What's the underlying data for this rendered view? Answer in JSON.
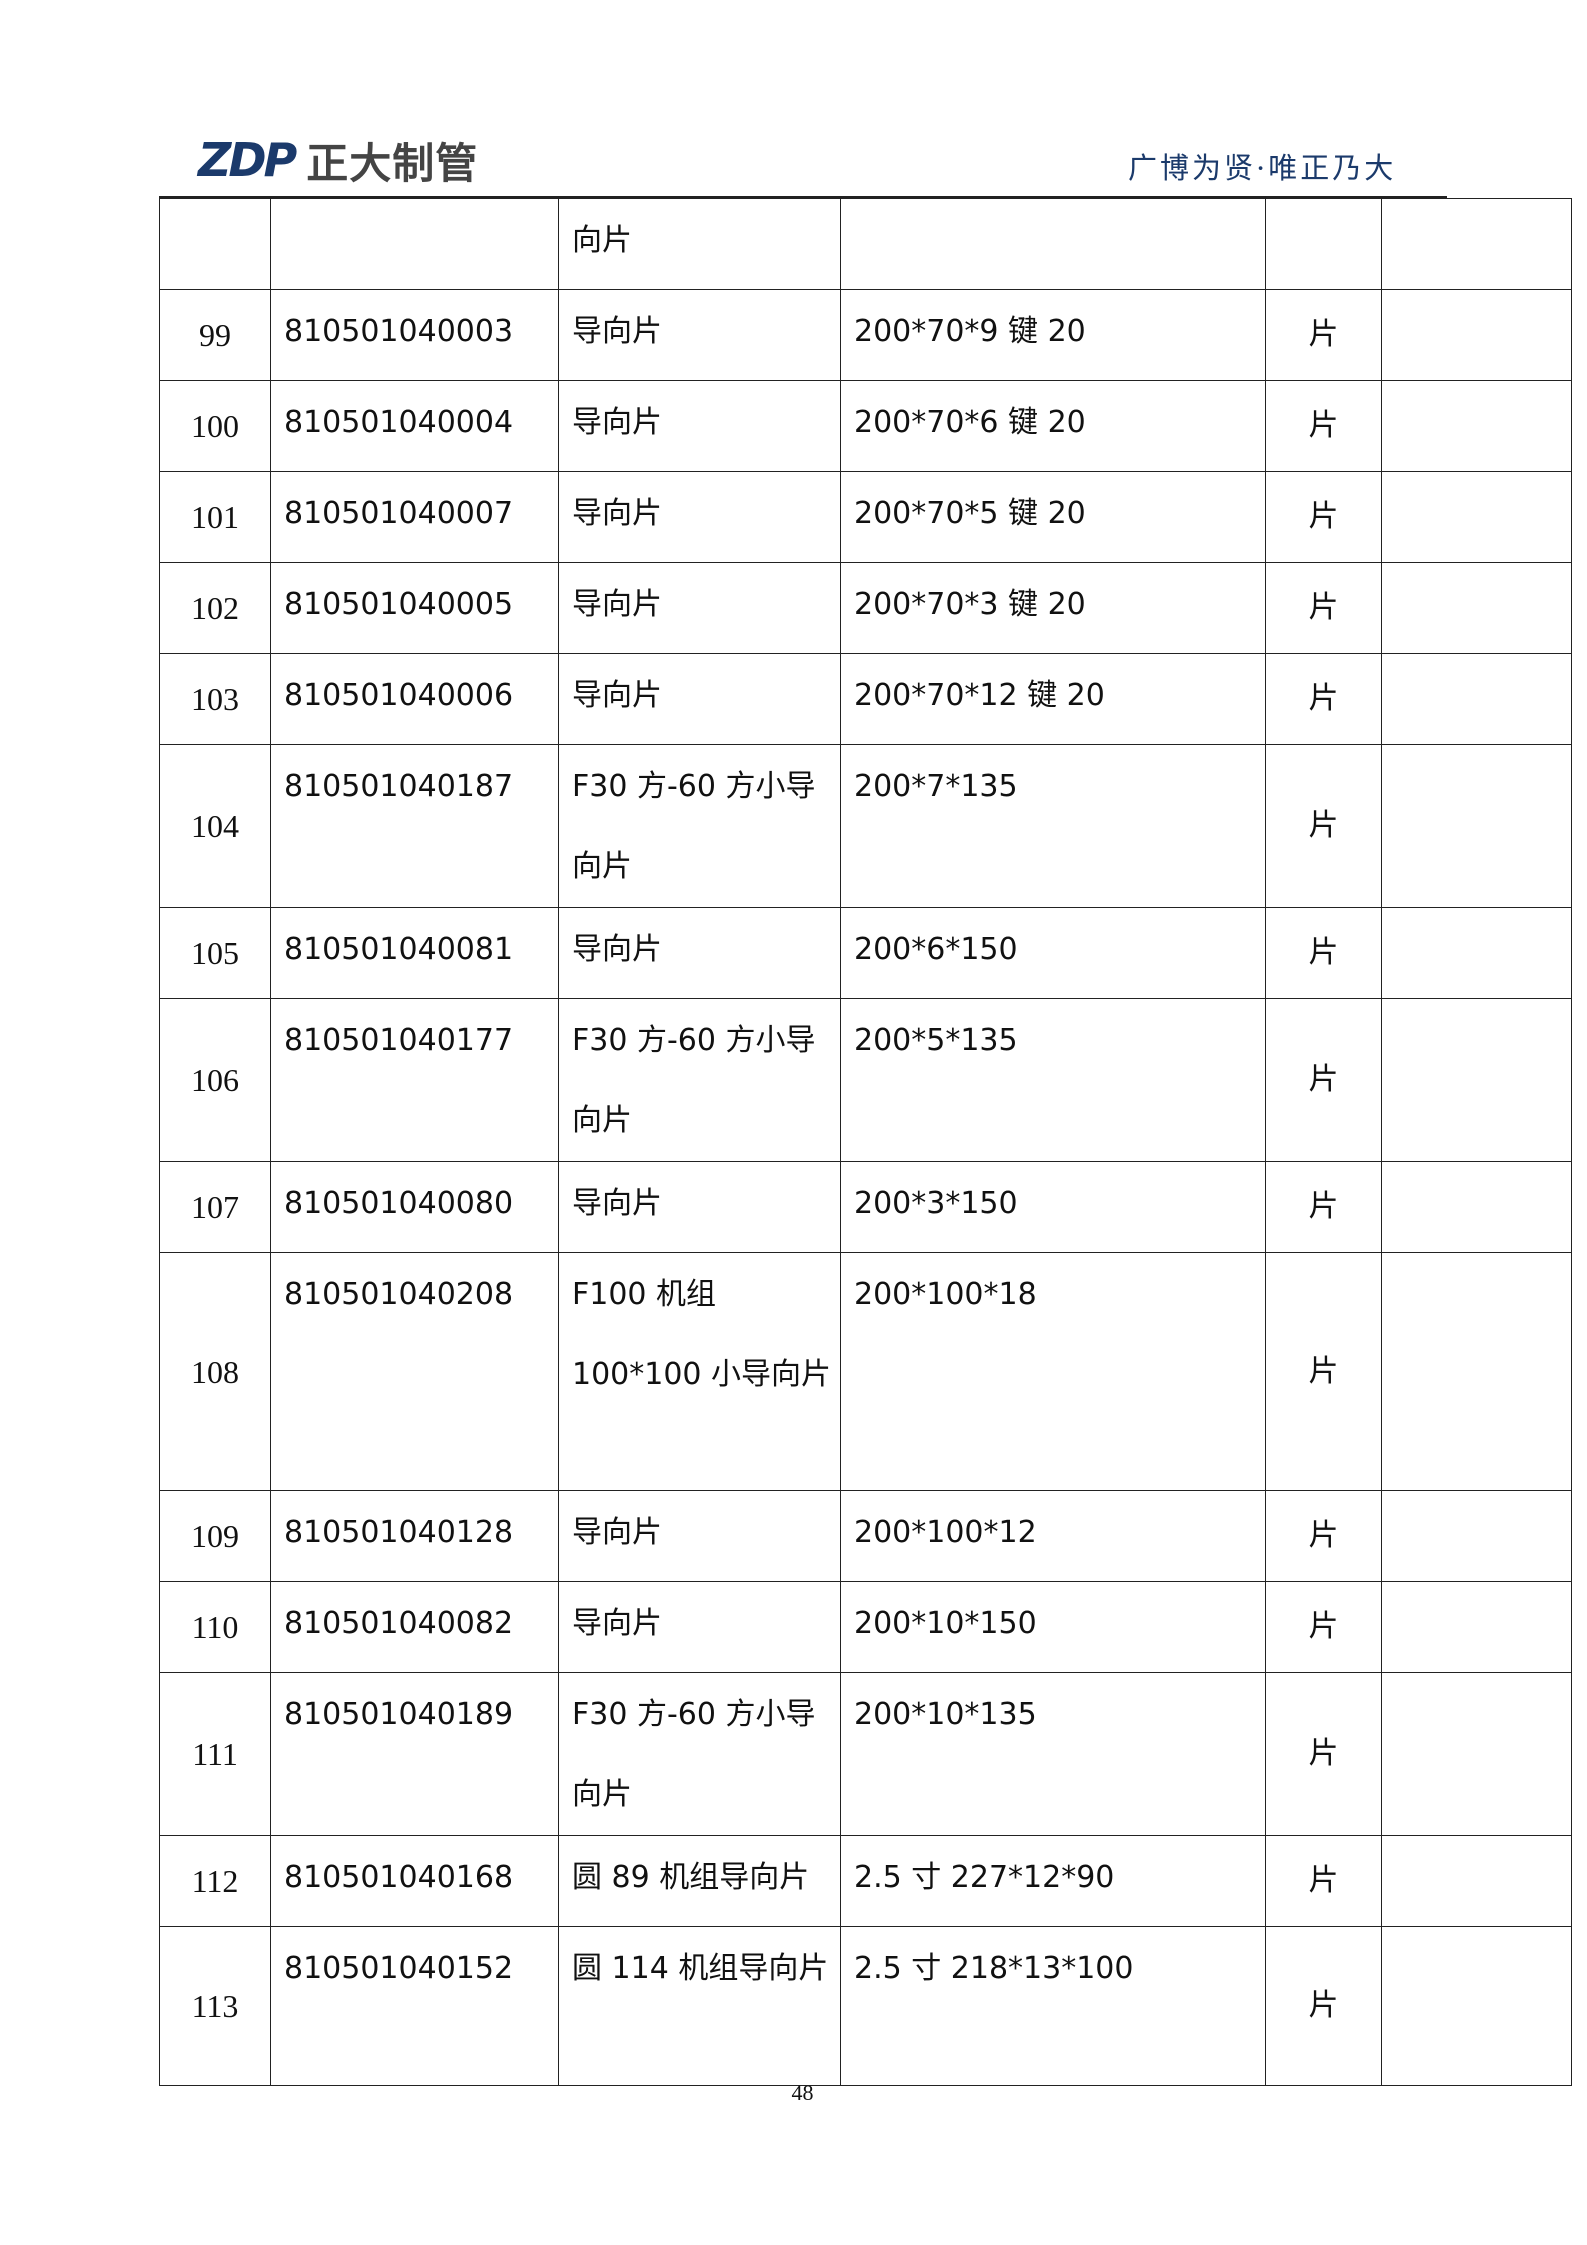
{
  "header": {
    "logo_mark": "ZDP",
    "logo_text": "正大制管",
    "motto": "广博为贤·唯正乃大"
  },
  "table": {
    "rows": [
      {
        "seq": "",
        "code": "",
        "name": "向片",
        "spec": "",
        "unit": "",
        "note": ""
      },
      {
        "seq": "99",
        "code": "810501040003",
        "name": "导向片",
        "spec": "200*70*9 键 20",
        "unit": "片",
        "note": ""
      },
      {
        "seq": "100",
        "code": "810501040004",
        "name": "导向片",
        "spec": "200*70*6 键 20",
        "unit": "片",
        "note": ""
      },
      {
        "seq": "101",
        "code": "810501040007",
        "name": "导向片",
        "spec": "200*70*5 键 20",
        "unit": "片",
        "note": ""
      },
      {
        "seq": "102",
        "code": "810501040005",
        "name": "导向片",
        "spec": "200*70*3 键 20",
        "unit": "片",
        "note": ""
      },
      {
        "seq": "103",
        "code": "810501040006",
        "name": "导向片",
        "spec": "200*70*12 键 20",
        "unit": "片",
        "note": ""
      },
      {
        "seq": "104",
        "code": "810501040187",
        "name": "F30 方-60 方小导向片",
        "spec": "200*7*135",
        "unit": "片",
        "note": ""
      },
      {
        "seq": "105",
        "code": "810501040081",
        "name": "导向片",
        "spec": "200*6*150",
        "unit": "片",
        "note": ""
      },
      {
        "seq": "106",
        "code": "810501040177",
        "name": "F30 方-60 方小导向片",
        "spec": "200*5*135",
        "unit": "片",
        "note": ""
      },
      {
        "seq": "107",
        "code": "810501040080",
        "name": "导向片",
        "spec": "200*3*150",
        "unit": "片",
        "note": ""
      },
      {
        "seq": "108",
        "code": "810501040208",
        "name": "F100 机组 100*100 小导向片",
        "spec": "200*100*18",
        "unit": "片",
        "note": ""
      },
      {
        "seq": "109",
        "code": "810501040128",
        "name": "导向片",
        "spec": "200*100*12",
        "unit": "片",
        "note": ""
      },
      {
        "seq": "110",
        "code": "810501040082",
        "name": "导向片",
        "spec": "200*10*150",
        "unit": "片",
        "note": ""
      },
      {
        "seq": "111",
        "code": "810501040189",
        "name": "F30 方-60 方小导向片",
        "spec": "200*10*135",
        "unit": "片",
        "note": ""
      },
      {
        "seq": "112",
        "code": "810501040168",
        "name": "圆 89 机组导向片",
        "spec": "2.5 寸 227*12*90",
        "unit": "片",
        "note": ""
      },
      {
        "seq": "113",
        "code": "810501040152",
        "name": "圆 114 机组导向片",
        "spec": "2.5 寸 218*13*100",
        "unit": "片",
        "note": ""
      }
    ]
  },
  "footer": {
    "page_number": "48"
  }
}
